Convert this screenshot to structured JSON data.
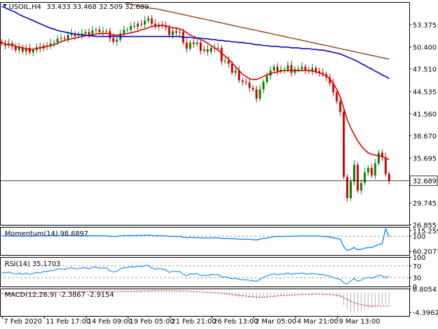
{
  "header": {
    "symbol": "USOIL,H4",
    "ohlc": "33.433 33.468 32.509 32.689"
  },
  "colors": {
    "bull": "#008000",
    "bear": "#cc0000",
    "ma_red": "#e00000",
    "ma_blue": "#0000c8",
    "ma_brown": "#a0522d",
    "indicator": "#1e90ff",
    "macd_hist": "#cc0000",
    "level_dash": "#999999",
    "frame": "#000000"
  },
  "chart_data": [
    {
      "type": "candlestick",
      "name": "price",
      "ylim": [
        26.855,
        56.365
      ],
      "y_ticks": [
        "53.375",
        "50.400",
        "47.510",
        "44.535",
        "41.560",
        "38.670",
        "35.695",
        "29.745",
        "26.855"
      ],
      "last_price": "32.689",
      "x_ticks": [
        "7 Feb 2020",
        "11 Feb 17:00",
        "14 Feb 09:00",
        "19 Feb 05:00",
        "21 Feb 21:00",
        "26 Feb 13:00",
        "2 Mar 05:00",
        "4 Mar 21:00",
        "9 Mar 13:00"
      ],
      "closes": [
        50.9,
        50.6,
        50.9,
        50.5,
        50.0,
        50.4,
        49.8,
        50.3,
        49.7,
        50.0,
        50.4,
        50.2,
        50.6,
        50.5,
        50.9,
        51.0,
        51.5,
        51.6,
        51.5,
        52.0,
        52.2,
        51.9,
        52.0,
        52.2,
        52.4,
        52.1,
        52.6,
        52.7,
        52.4,
        52.5,
        52.5,
        51.6,
        51.1,
        51.4,
        52.2,
        52.7,
        52.7,
        53.2,
        53.1,
        53.5,
        53.4,
        53.9,
        54.2,
        53.5,
        53.1,
        53.4,
        53.2,
        53.0,
        52.0,
        52.5,
        52.3,
        52.4,
        51.0,
        50.2,
        51.0,
        50.8,
        51.0,
        49.9,
        50.1,
        49.8,
        50.3,
        50.2,
        50.3,
        48.5,
        48.6,
        48.2,
        47.0,
        47.3,
        46.0,
        45.8,
        45.7,
        45.0,
        44.8,
        43.6,
        44.8,
        45.8,
        46.6,
        47.3,
        47.8,
        47.2,
        47.4,
        47.4,
        48.0,
        47.0,
        47.5,
        47.5,
        47.8,
        47.3,
        47.2,
        47.6,
        47.2,
        47.0,
        46.8,
        46.4,
        45.6,
        44.4,
        43.2,
        41.8,
        33.2,
        30.4,
        32.6,
        34.8,
        31.4,
        32.4,
        33.8,
        34.4,
        33.4,
        35.0,
        36.4,
        35.8,
        33.6,
        32.7
      ],
      "series": [
        {
          "name": "MA red",
          "values": [
            51.0,
            50.8,
            50.7,
            50.7,
            50.5,
            50.4,
            50.3,
            50.2,
            50.1,
            50.1,
            50.2,
            50.3,
            50.4,
            50.5,
            50.6,
            50.7,
            50.9,
            51.1,
            51.3,
            51.4,
            51.5,
            51.6,
            51.7,
            51.8,
            51.9,
            52.0,
            52.0,
            52.1,
            52.2,
            52.2,
            52.2,
            52.1,
            52.0,
            52.0,
            52.0,
            52.1,
            52.2,
            52.3,
            52.4,
            52.5,
            52.7,
            52.8,
            53.0,
            53.1,
            53.2,
            53.2,
            53.3,
            53.2,
            53.1,
            53.0,
            52.9,
            52.8,
            52.6,
            52.3,
            52.0,
            51.8,
            51.6,
            51.4,
            51.2,
            50.9,
            50.6,
            50.3,
            50.0,
            49.6,
            49.2,
            48.8,
            48.3,
            47.8,
            47.3,
            46.8,
            46.5,
            46.2,
            46.1,
            46.1,
            46.3,
            46.5,
            46.7,
            46.9,
            47.0,
            47.1,
            47.2,
            47.3,
            47.3,
            47.3,
            47.3,
            47.3,
            47.3,
            47.3,
            47.3,
            47.2,
            47.1,
            47.0,
            46.8,
            46.6,
            46.2,
            45.6,
            44.8,
            43.8,
            42.3,
            40.8,
            39.7,
            38.8,
            38.0,
            37.3,
            36.8,
            36.4,
            36.2,
            36.1,
            36.0,
            35.9,
            35.7,
            35.5
          ]
        },
        {
          "name": "MA blue",
          "values": [
            55.8,
            55.6,
            55.4,
            55.2,
            55.0,
            54.7,
            54.5,
            54.3,
            54.1,
            53.9,
            53.7,
            53.5,
            53.3,
            53.1,
            52.9,
            52.8,
            52.6,
            52.5,
            52.4,
            52.3,
            52.2,
            52.1,
            52.1,
            52.0,
            52.0,
            51.9,
            51.9,
            51.8,
            51.8,
            51.8,
            51.8,
            51.8,
            51.8,
            51.8,
            51.8,
            51.8,
            51.8,
            51.8,
            51.8,
            51.8,
            51.8,
            51.8,
            51.8,
            51.8,
            51.8,
            51.8,
            51.8,
            51.8,
            51.8,
            51.8,
            51.8,
            51.8,
            51.7,
            51.7,
            51.7,
            51.6,
            51.6,
            51.6,
            51.5,
            51.5,
            51.4,
            51.4,
            51.3,
            51.3,
            51.2,
            51.2,
            51.1,
            51.1,
            51.0,
            51.0,
            50.9,
            50.9,
            50.8,
            50.7,
            50.7,
            50.6,
            50.6,
            50.5,
            50.5,
            50.5,
            50.4,
            50.4,
            50.4,
            50.3,
            50.3,
            50.3,
            50.2,
            50.2,
            50.2,
            50.1,
            50.1,
            50.0,
            50.0,
            49.9,
            49.8,
            49.7,
            49.6,
            49.5,
            49.3,
            49.1,
            48.9,
            48.7,
            48.5,
            48.2,
            48.0,
            47.7,
            47.5,
            47.2,
            47.0,
            46.7,
            46.5,
            46.2
          ]
        },
        {
          "name": "MA brown",
          "values": [
            null,
            null,
            null,
            null,
            null,
            null,
            null,
            null,
            null,
            null,
            null,
            null,
            null,
            null,
            null,
            null,
            null,
            null,
            null,
            null,
            null,
            null,
            null,
            null,
            null,
            null,
            null,
            null,
            null,
            null,
            null,
            null,
            null,
            null,
            null,
            56.3,
            56.2,
            56.1,
            56.0,
            55.9,
            55.8,
            55.7,
            55.6,
            55.5,
            55.5,
            55.4,
            55.3,
            55.2,
            55.1,
            55.0,
            54.9,
            54.8,
            54.7,
            54.6,
            54.5,
            54.4,
            54.3,
            54.2,
            54.1,
            54.0,
            53.9,
            53.8,
            53.7,
            53.6,
            53.5,
            53.4,
            53.3,
            53.2,
            53.1,
            53.0,
            52.9,
            52.8,
            52.7,
            52.6,
            52.5,
            52.4,
            52.3,
            52.2,
            52.1,
            52.0,
            51.9,
            51.8,
            51.7,
            51.6,
            51.5,
            51.4,
            51.3,
            51.2,
            51.1,
            51.0,
            50.9,
            50.8,
            50.7,
            50.6,
            50.5,
            50.4,
            50.3,
            50.2,
            50.1,
            50.0,
            49.9,
            49.8,
            49.7,
            49.6,
            49.5,
            49.4,
            49.3,
            49.2,
            49.1,
            49.0,
            48.9,
            48.8
          ]
        }
      ]
    },
    {
      "type": "line",
      "name": "Momentum",
      "label": "Momentum(14) 98.6897",
      "ylim": [
        50,
        125
      ],
      "y_ticks": [
        "115.2599",
        "100",
        "60.2077"
      ],
      "level": 100,
      "values": [
        101,
        101,
        100.5,
        101,
        100,
        101,
        100,
        101,
        100,
        100.5,
        101,
        101,
        101,
        101,
        101.5,
        101.5,
        102,
        102,
        101.5,
        101.5,
        101.5,
        101,
        101,
        101,
        101.5,
        101,
        101.5,
        101.5,
        101,
        101,
        101,
        100,
        99.5,
        100,
        101,
        101.5,
        101.5,
        102,
        102,
        102.5,
        102,
        102.5,
        103,
        102,
        101.5,
        101.5,
        101,
        101,
        99.5,
        100,
        99.5,
        99.5,
        97,
        96,
        97,
        96.5,
        96.5,
        95.5,
        95.5,
        95.5,
        96,
        96,
        96,
        94,
        94,
        94,
        93,
        93.5,
        92,
        92,
        92,
        91.5,
        91,
        90,
        92,
        94,
        95,
        97,
        99,
        99.5,
        100,
        100,
        100.5,
        100,
        100.5,
        100.5,
        101,
        100.5,
        100.5,
        101,
        100.5,
        100.5,
        100,
        99,
        98,
        96,
        94,
        92,
        72,
        62,
        65,
        70,
        64,
        65,
        68,
        70,
        70,
        74,
        78,
        80,
        120,
        98.7
      ]
    },
    {
      "type": "line",
      "name": "RSI",
      "label": "RSI(14) 35.1703",
      "ylim": [
        0,
        100
      ],
      "y_ticks": [
        "100",
        "70",
        "30",
        "0"
      ],
      "levels": [
        70,
        30
      ],
      "values": [
        48,
        46,
        49,
        45,
        42,
        46,
        41,
        46,
        41,
        44,
        48,
        46,
        51,
        50,
        54,
        55,
        59,
        60,
        58,
        62,
        64,
        60,
        61,
        63,
        64,
        60,
        65,
        66,
        62,
        63,
        63,
        53,
        49,
        52,
        60,
        64,
        64,
        67,
        66,
        69,
        68,
        71,
        72,
        63,
        59,
        61,
        59,
        57,
        48,
        52,
        50,
        51,
        41,
        37,
        43,
        42,
        44,
        37,
        39,
        37,
        41,
        40,
        41,
        32,
        33,
        31,
        26,
        28,
        24,
        23,
        23,
        21,
        20,
        17,
        25,
        31,
        36,
        40,
        43,
        40,
        42,
        42,
        46,
        41,
        44,
        44,
        46,
        43,
        42,
        45,
        42,
        41,
        40,
        38,
        35,
        31,
        27,
        24,
        12,
        9,
        19,
        27,
        18,
        22,
        28,
        31,
        28,
        33,
        38,
        36,
        30,
        35.2
      ]
    },
    {
      "type": "bar",
      "name": "MACD",
      "label": "MACD(12,26,9) -2.3867 -2.9154",
      "ylim": [
        -5.2,
        0.9
      ],
      "y_ticks": [
        "0.8054",
        "-4.3962"
      ],
      "signal_values": [
        -0.2,
        -0.2,
        -0.2,
        -0.2,
        -0.2,
        -0.2,
        -0.2,
        -0.2,
        -0.2,
        -0.2,
        -0.15,
        -0.1,
        -0.05,
        0,
        0.02,
        0.05,
        0.08,
        0.1,
        0.12,
        0.15,
        0.18,
        0.2,
        0.22,
        0.24,
        0.25,
        0.26,
        0.27,
        0.28,
        0.28,
        0.28,
        0.28,
        0.27,
        0.26,
        0.25,
        0.25,
        0.26,
        0.27,
        0.28,
        0.3,
        0.32,
        0.34,
        0.36,
        0.38,
        0.4,
        0.41,
        0.42,
        0.42,
        0.42,
        0.41,
        0.4,
        0.38,
        0.36,
        0.33,
        0.3,
        0.26,
        0.22,
        0.18,
        0.14,
        0.1,
        0.06,
        0.02,
        -0.02,
        -0.06,
        -0.12,
        -0.2,
        -0.3,
        -0.4,
        -0.5,
        -0.6,
        -0.7,
        -0.78,
        -0.86,
        -0.93,
        -1.0,
        -1.02,
        -1.0,
        -0.96,
        -0.9,
        -0.83,
        -0.76,
        -0.7,
        -0.64,
        -0.58,
        -0.54,
        -0.5,
        -0.47,
        -0.44,
        -0.42,
        -0.4,
        -0.38,
        -0.37,
        -0.36,
        -0.37,
        -0.39,
        -0.43,
        -0.5,
        -0.6,
        -0.75,
        -1.1,
        -1.5,
        -1.9,
        -2.2,
        -2.5,
        -2.7,
        -2.85,
        -2.95,
        -3.0,
        -3.0,
        -2.98,
        -2.96,
        -2.94,
        -2.92
      ],
      "values": [
        -0.3,
        -0.3,
        -0.3,
        -0.3,
        -0.35,
        -0.3,
        -0.35,
        -0.3,
        -0.35,
        -0.3,
        -0.25,
        -0.2,
        -0.1,
        -0.05,
        0,
        0.05,
        0.1,
        0.12,
        0.14,
        0.16,
        0.2,
        0.22,
        0.24,
        0.26,
        0.28,
        0.28,
        0.3,
        0.3,
        0.28,
        0.28,
        0.28,
        0.24,
        0.2,
        0.2,
        0.24,
        0.28,
        0.3,
        0.32,
        0.34,
        0.36,
        0.38,
        0.4,
        0.42,
        0.4,
        0.38,
        0.38,
        0.36,
        0.34,
        0.3,
        0.3,
        0.28,
        0.26,
        0.2,
        0.12,
        0.08,
        0.04,
        0,
        -0.06,
        -0.1,
        -0.14,
        -0.16,
        -0.2,
        -0.24,
        -0.4,
        -0.5,
        -0.62,
        -0.8,
        -0.9,
        -1.02,
        -1.1,
        -1.15,
        -1.2,
        -1.25,
        -1.35,
        -1.3,
        -1.2,
        -1.1,
        -0.95,
        -0.85,
        -0.8,
        -0.72,
        -0.66,
        -0.58,
        -0.56,
        -0.52,
        -0.5,
        -0.46,
        -0.46,
        -0.44,
        -0.42,
        -0.42,
        -0.42,
        -0.44,
        -0.48,
        -0.56,
        -0.7,
        -0.9,
        -1.2,
        -2.8,
        -3.8,
        -4.3,
        -4.4,
        -4.4,
        -4.2,
        -3.9,
        -3.6,
        -3.4,
        -3.1,
        -2.8,
        -2.6,
        -2.5,
        -2.39
      ]
    }
  ]
}
